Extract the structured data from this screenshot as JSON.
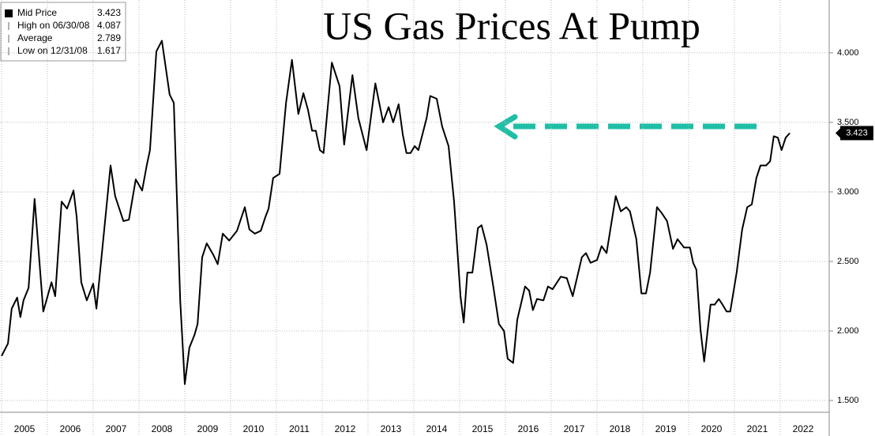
{
  "chart_data": {
    "type": "line",
    "title": "US Gas Prices At Pump",
    "legend": [
      {
        "label": "Mid Price",
        "value": 3.423
      },
      {
        "label": "High on 06/30/08",
        "value": 4.087
      },
      {
        "label": "Average",
        "value": 2.789
      },
      {
        "label": "Low on 12/31/08",
        "value": 1.617
      }
    ],
    "legend_position": "upper left",
    "grid": true,
    "xlim": [
      2005,
      2023.07
    ],
    "ylim": [
      1.415,
      4.38
    ],
    "xticks": [
      {
        "value": 2005.5,
        "label": "2005"
      },
      {
        "value": 2006.5,
        "label": "2006"
      },
      {
        "value": 2007.5,
        "label": "2007"
      },
      {
        "value": 2008.5,
        "label": "2008"
      },
      {
        "value": 2009.5,
        "label": "2009"
      },
      {
        "value": 2010.5,
        "label": "2010"
      },
      {
        "value": 2011.5,
        "label": "2011"
      },
      {
        "value": 2012.5,
        "label": "2012"
      },
      {
        "value": 2013.5,
        "label": "2013"
      },
      {
        "value": 2014.5,
        "label": "2014"
      },
      {
        "value": 2015.5,
        "label": "2015"
      },
      {
        "value": 2016.5,
        "label": "2016"
      },
      {
        "value": 2017.5,
        "label": "2017"
      },
      {
        "value": 2018.5,
        "label": "2018"
      },
      {
        "value": 2019.5,
        "label": "2019"
      },
      {
        "value": 2020.5,
        "label": "2020"
      },
      {
        "value": 2021.5,
        "label": "2021"
      },
      {
        "value": 2022.5,
        "label": "2022"
      }
    ],
    "yticks": [
      {
        "value": 1.5,
        "label": "1.500"
      },
      {
        "value": 2,
        "label": "2.000"
      },
      {
        "value": 2.5,
        "label": "2.500"
      },
      {
        "value": 3,
        "label": "3.000"
      },
      {
        "value": 3.5,
        "label": "3.500"
      },
      {
        "value": 4,
        "label": "4.000"
      }
    ],
    "series": [
      {
        "name": "Mid Price",
        "color": "#000000",
        "x": [
          2005.0,
          2005.14,
          2005.22,
          2005.34,
          2005.41,
          2005.48,
          2005.59,
          2005.72,
          2005.91,
          2006.09,
          2006.17,
          2006.31,
          2006.43,
          2006.57,
          2006.64,
          2006.74,
          2006.86,
          2007.0,
          2007.07,
          2007.38,
          2007.48,
          2007.66,
          2007.78,
          2007.93,
          2008.07,
          2008.17,
          2008.24,
          2008.38,
          2008.5,
          2008.67,
          2008.76,
          2008.9,
          2009.0,
          2009.1,
          2009.21,
          2009.28,
          2009.38,
          2009.48,
          2009.62,
          2009.72,
          2009.83,
          2009.97,
          2010.14,
          2010.31,
          2010.41,
          2010.53,
          2010.66,
          2010.76,
          2010.83,
          2010.93,
          2011.07,
          2011.21,
          2011.34,
          2011.48,
          2011.59,
          2011.69,
          2011.78,
          2011.86,
          2011.95,
          2012.03,
          2012.21,
          2012.38,
          2012.48,
          2012.66,
          2012.79,
          2012.97,
          2013.16,
          2013.33,
          2013.45,
          2013.55,
          2013.67,
          2013.76,
          2013.84,
          2013.93,
          2014.02,
          2014.1,
          2014.28,
          2014.36,
          2014.5,
          2014.62,
          2014.76,
          2014.88,
          2015.02,
          2015.09,
          2015.17,
          2015.28,
          2015.4,
          2015.48,
          2015.59,
          2015.74,
          2015.86,
          2015.97,
          2016.05,
          2016.17,
          2016.26,
          2016.43,
          2016.52,
          2016.6,
          2016.69,
          2016.83,
          2016.93,
          2017.03,
          2017.21,
          2017.34,
          2017.47,
          2017.67,
          2017.76,
          2017.86,
          2018.0,
          2018.1,
          2018.21,
          2018.41,
          2018.52,
          2018.64,
          2018.72,
          2018.86,
          2018.97,
          2019.07,
          2019.16,
          2019.31,
          2019.41,
          2019.53,
          2019.66,
          2019.76,
          2019.9,
          2020.03,
          2020.1,
          2020.17,
          2020.26,
          2020.34,
          2020.48,
          2020.57,
          2020.66,
          2020.74,
          2020.83,
          2020.91,
          2021.05,
          2021.17,
          2021.28,
          2021.38,
          2021.48,
          2021.57,
          2021.69,
          2021.78,
          2021.86,
          2021.95,
          2022.03,
          2022.12,
          2022.21
        ],
        "values": [
          1.82,
          1.91,
          2.16,
          2.24,
          2.1,
          2.22,
          2.31,
          2.95,
          2.14,
          2.35,
          2.25,
          2.93,
          2.88,
          3.01,
          2.82,
          2.35,
          2.22,
          2.34,
          2.16,
          3.19,
          2.97,
          2.79,
          2.8,
          3.09,
          3.01,
          3.19,
          3.3,
          4.01,
          4.087,
          3.7,
          3.64,
          2.22,
          1.617,
          1.88,
          1.97,
          2.05,
          2.53,
          2.63,
          2.55,
          2.48,
          2.7,
          2.65,
          2.72,
          2.89,
          2.73,
          2.7,
          2.72,
          2.82,
          2.88,
          3.1,
          3.13,
          3.64,
          3.95,
          3.56,
          3.71,
          3.59,
          3.44,
          3.44,
          3.3,
          3.28,
          3.93,
          3.76,
          3.34,
          3.84,
          3.53,
          3.3,
          3.78,
          3.5,
          3.61,
          3.5,
          3.63,
          3.41,
          3.28,
          3.28,
          3.33,
          3.3,
          3.53,
          3.69,
          3.67,
          3.47,
          3.33,
          2.93,
          2.25,
          2.06,
          2.42,
          2.42,
          2.74,
          2.76,
          2.62,
          2.31,
          2.05,
          2.0,
          1.8,
          1.77,
          2.08,
          2.32,
          2.29,
          2.15,
          2.23,
          2.22,
          2.32,
          2.3,
          2.39,
          2.38,
          2.25,
          2.53,
          2.56,
          2.49,
          2.51,
          2.61,
          2.56,
          2.97,
          2.86,
          2.89,
          2.86,
          2.66,
          2.27,
          2.27,
          2.42,
          2.89,
          2.85,
          2.79,
          2.59,
          2.66,
          2.6,
          2.6,
          2.49,
          2.44,
          2.01,
          1.78,
          2.19,
          2.19,
          2.23,
          2.19,
          2.14,
          2.14,
          2.42,
          2.73,
          2.89,
          2.91,
          3.1,
          3.19,
          3.19,
          3.22,
          3.4,
          3.39,
          3.3,
          3.39,
          3.423
        ]
      }
    ]
  }
}
